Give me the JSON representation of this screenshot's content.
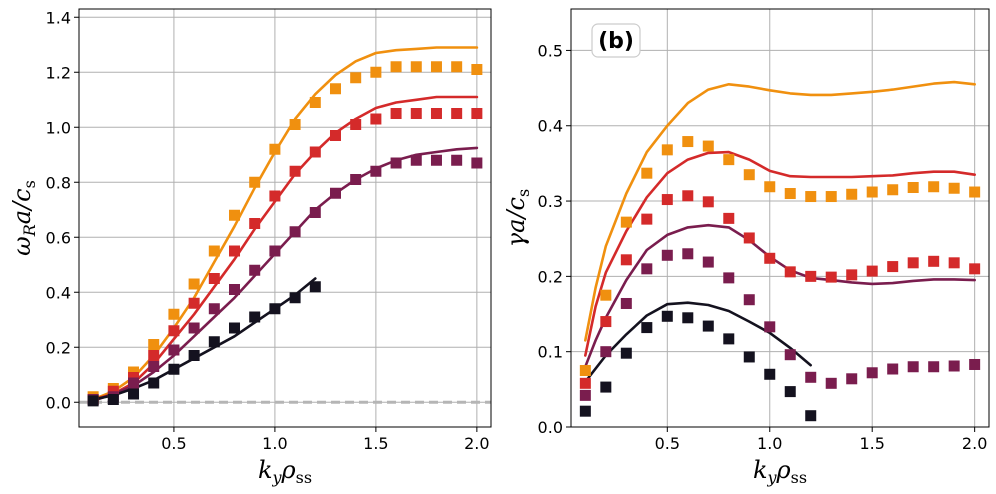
{
  "chart_data": [
    {
      "type": "line",
      "panel_label": "",
      "xlabel": "k_y ρ_ss",
      "ylabel": "ω_R a / c_s",
      "xlim": [
        0.03,
        2.07
      ],
      "ylim": [
        -0.09,
        1.43
      ],
      "x_ticks": [
        "0.5",
        "1.0",
        "1.5",
        "2.0"
      ],
      "x_tick_values": [
        0.5,
        1.0,
        1.5,
        2.0
      ],
      "y_ticks": [
        "0.0",
        "0.2",
        "0.4",
        "0.6",
        "0.8",
        "1.0",
        "1.2",
        "1.4"
      ],
      "y_tick_values": [
        0.0,
        0.2,
        0.4,
        0.6,
        0.8,
        1.0,
        1.2,
        1.4
      ],
      "grid": true,
      "zero_line": 0.0,
      "series": [
        {
          "name": "orange",
          "color": "#f0900f",
          "line": {
            "x": [
              0.1,
              0.2,
              0.3,
              0.4,
              0.5,
              0.6,
              0.7,
              0.8,
              0.9,
              1.0,
              1.1,
              1.2,
              1.3,
              1.4,
              1.5,
              1.6,
              1.7,
              1.8,
              1.9,
              2.0
            ],
            "y": [
              0.01,
              0.04,
              0.09,
              0.17,
              0.27,
              0.38,
              0.51,
              0.64,
              0.78,
              0.91,
              1.03,
              1.12,
              1.19,
              1.24,
              1.27,
              1.28,
              1.285,
              1.29,
              1.29,
              1.29
            ]
          },
          "markers": {
            "x": [
              0.1,
              0.2,
              0.3,
              0.4,
              0.5,
              0.6,
              0.7,
              0.8,
              0.9,
              1.0,
              1.1,
              1.2,
              1.3,
              1.4,
              1.5,
              1.6,
              1.7,
              1.8,
              1.9,
              2.0
            ],
            "y": [
              0.02,
              0.05,
              0.11,
              0.21,
              0.32,
              0.43,
              0.55,
              0.68,
              0.8,
              0.92,
              1.01,
              1.09,
              1.14,
              1.18,
              1.2,
              1.22,
              1.22,
              1.22,
              1.22,
              1.21
            ]
          }
        },
        {
          "name": "red",
          "color": "#d42a2a",
          "line": {
            "x": [
              0.1,
              0.2,
              0.3,
              0.4,
              0.5,
              0.6,
              0.7,
              0.8,
              0.9,
              1.0,
              1.1,
              1.2,
              1.3,
              1.4,
              1.5,
              1.6,
              1.7,
              1.8,
              1.9,
              2.0
            ],
            "y": [
              0.01,
              0.03,
              0.07,
              0.14,
              0.23,
              0.32,
              0.42,
              0.52,
              0.63,
              0.73,
              0.83,
              0.91,
              0.98,
              1.03,
              1.07,
              1.09,
              1.1,
              1.11,
              1.11,
              1.11
            ]
          },
          "markers": {
            "x": [
              0.1,
              0.2,
              0.3,
              0.4,
              0.5,
              0.6,
              0.7,
              0.8,
              0.9,
              1.0,
              1.1,
              1.2,
              1.3,
              1.4,
              1.5,
              1.6,
              1.7,
              1.8,
              1.9,
              2.0
            ],
            "y": [
              0.01,
              0.04,
              0.09,
              0.17,
              0.26,
              0.36,
              0.45,
              0.55,
              0.65,
              0.75,
              0.84,
              0.91,
              0.97,
              1.01,
              1.03,
              1.05,
              1.05,
              1.05,
              1.05,
              1.05
            ]
          }
        },
        {
          "name": "purple",
          "color": "#7a1d4e",
          "line": {
            "x": [
              0.1,
              0.2,
              0.3,
              0.4,
              0.5,
              0.6,
              0.7,
              0.8,
              0.9,
              1.0,
              1.1,
              1.2,
              1.3,
              1.4,
              1.5,
              1.6,
              1.7,
              1.8,
              1.9,
              2.0
            ],
            "y": [
              0.005,
              0.03,
              0.06,
              0.11,
              0.17,
              0.24,
              0.31,
              0.38,
              0.46,
              0.54,
              0.62,
              0.7,
              0.76,
              0.81,
              0.85,
              0.88,
              0.9,
              0.91,
              0.92,
              0.925
            ]
          },
          "markers": {
            "x": [
              0.1,
              0.2,
              0.3,
              0.4,
              0.5,
              0.6,
              0.7,
              0.8,
              0.9,
              1.0,
              1.1,
              1.2,
              1.3,
              1.4,
              1.5,
              1.6,
              1.7,
              1.8,
              1.9,
              2.0
            ],
            "y": [
              0.01,
              0.02,
              0.07,
              0.13,
              0.19,
              0.27,
              0.34,
              0.41,
              0.48,
              0.55,
              0.62,
              0.69,
              0.76,
              0.81,
              0.84,
              0.87,
              0.88,
              0.88,
              0.88,
              0.87
            ]
          }
        },
        {
          "name": "black",
          "color": "#14121f",
          "line": {
            "x": [
              0.1,
              0.2,
              0.3,
              0.4,
              0.5,
              0.6,
              0.7,
              0.8,
              0.9,
              1.0,
              1.1,
              1.2
            ],
            "y": [
              0.01,
              0.025,
              0.05,
              0.08,
              0.12,
              0.16,
              0.2,
              0.24,
              0.29,
              0.34,
              0.39,
              0.45
            ]
          },
          "markers": {
            "x": [
              0.1,
              0.2,
              0.3,
              0.4,
              0.5,
              0.6,
              0.7,
              0.8,
              0.9,
              1.0,
              1.1,
              1.2
            ],
            "y": [
              0.005,
              0.01,
              0.03,
              0.07,
              0.12,
              0.17,
              0.22,
              0.27,
              0.31,
              0.34,
              0.38,
              0.42
            ]
          }
        }
      ]
    },
    {
      "type": "line",
      "panel_label": "(b)",
      "xlabel": "k_y ρ_ss",
      "ylabel": "γ a / c_s",
      "xlim": [
        0.03,
        2.07
      ],
      "ylim": [
        0.0,
        0.555
      ],
      "x_ticks": [
        "0.5",
        "1.0",
        "1.5",
        "2.0"
      ],
      "x_tick_values": [
        0.5,
        1.0,
        1.5,
        2.0
      ],
      "y_ticks": [
        "0.0",
        "0.1",
        "0.2",
        "0.3",
        "0.4",
        "0.5"
      ],
      "y_tick_values": [
        0.0,
        0.1,
        0.2,
        0.3,
        0.4,
        0.5
      ],
      "grid": true,
      "series": [
        {
          "name": "orange",
          "color": "#f0900f",
          "line": {
            "x": [
              0.1,
              0.15,
              0.2,
              0.3,
              0.4,
              0.5,
              0.6,
              0.7,
              0.8,
              0.9,
              1.0,
              1.1,
              1.2,
              1.3,
              1.4,
              1.5,
              1.6,
              1.7,
              1.8,
              1.9,
              2.0
            ],
            "y": [
              0.115,
              0.185,
              0.24,
              0.31,
              0.365,
              0.4,
              0.43,
              0.448,
              0.455,
              0.452,
              0.447,
              0.443,
              0.441,
              0.441,
              0.443,
              0.445,
              0.448,
              0.452,
              0.456,
              0.458,
              0.455
            ]
          },
          "markers": {
            "x": [
              0.1,
              0.2,
              0.3,
              0.4,
              0.5,
              0.6,
              0.7,
              0.8,
              0.9,
              1.0,
              1.1,
              1.2,
              1.3,
              1.4,
              1.5,
              1.6,
              1.7,
              1.8,
              1.9,
              2.0
            ],
            "y": [
              0.075,
              0.175,
              0.272,
              0.337,
              0.368,
              0.379,
              0.373,
              0.355,
              0.335,
              0.319,
              0.31,
              0.306,
              0.306,
              0.309,
              0.312,
              0.315,
              0.318,
              0.319,
              0.317,
              0.312
            ]
          }
        },
        {
          "name": "red",
          "color": "#d42a2a",
          "line": {
            "x": [
              0.1,
              0.15,
              0.2,
              0.3,
              0.4,
              0.5,
              0.6,
              0.7,
              0.8,
              0.9,
              1.0,
              1.1,
              1.2,
              1.3,
              1.4,
              1.5,
              1.6,
              1.7,
              1.8,
              1.9,
              2.0
            ],
            "y": [
              0.095,
              0.16,
              0.205,
              0.26,
              0.305,
              0.337,
              0.355,
              0.364,
              0.365,
              0.355,
              0.34,
              0.333,
              0.332,
              0.332,
              0.332,
              0.333,
              0.334,
              0.337,
              0.339,
              0.339,
              0.335
            ]
          },
          "markers": {
            "x": [
              0.1,
              0.2,
              0.3,
              0.4,
              0.5,
              0.6,
              0.7,
              0.8,
              0.9,
              1.0,
              1.1,
              1.2,
              1.3,
              1.4,
              1.5,
              1.6,
              1.7,
              1.8,
              1.9,
              2.0
            ],
            "y": [
              0.058,
              0.14,
              0.222,
              0.276,
              0.302,
              0.307,
              0.299,
              0.277,
              0.251,
              0.224,
              0.206,
              0.2,
              0.199,
              0.202,
              0.207,
              0.213,
              0.218,
              0.22,
              0.218,
              0.21
            ]
          }
        },
        {
          "name": "purple",
          "color": "#7a1d4e",
          "line": {
            "x": [
              0.1,
              0.15,
              0.2,
              0.3,
              0.4,
              0.5,
              0.6,
              0.7,
              0.8,
              0.9,
              1.0,
              1.1,
              1.2,
              1.3,
              1.4,
              1.5,
              1.6,
              1.7,
              1.8,
              1.9,
              2.0
            ],
            "y": [
              0.08,
              0.115,
              0.145,
              0.195,
              0.235,
              0.255,
              0.265,
              0.268,
              0.265,
              0.248,
              0.226,
              0.208,
              0.198,
              0.195,
              0.192,
              0.19,
              0.191,
              0.194,
              0.196,
              0.196,
              0.195
            ]
          },
          "markers": {
            "x": [
              0.1,
              0.2,
              0.3,
              0.4,
              0.5,
              0.6,
              0.7,
              0.8,
              0.9,
              1.0,
              1.1,
              1.2,
              1.3,
              1.4,
              1.5,
              1.6,
              1.7,
              1.8,
              1.9,
              2.0
            ],
            "y": [
              0.042,
              0.1,
              0.164,
              0.21,
              0.228,
              0.23,
              0.219,
              0.198,
              0.169,
              0.133,
              0.096,
              0.066,
              0.058,
              0.064,
              0.072,
              0.077,
              0.08,
              0.08,
              0.081,
              0.083
            ]
          }
        },
        {
          "name": "black",
          "color": "#14121f",
          "line": {
            "x": [
              0.1,
              0.2,
              0.3,
              0.4,
              0.5,
              0.6,
              0.7,
              0.8,
              0.9,
              1.0,
              1.1,
              1.2
            ],
            "y": [
              0.06,
              0.095,
              0.123,
              0.148,
              0.163,
              0.165,
              0.162,
              0.154,
              0.14,
              0.125,
              0.105,
              0.082
            ]
          },
          "markers": {
            "x": [
              0.1,
              0.2,
              0.3,
              0.4,
              0.5,
              0.6,
              0.7,
              0.8,
              0.9,
              1.0,
              1.1,
              1.2
            ],
            "y": [
              0.021,
              0.053,
              0.098,
              0.132,
              0.147,
              0.145,
              0.134,
              0.117,
              0.093,
              0.07,
              0.047,
              0.015
            ]
          }
        }
      ]
    }
  ]
}
